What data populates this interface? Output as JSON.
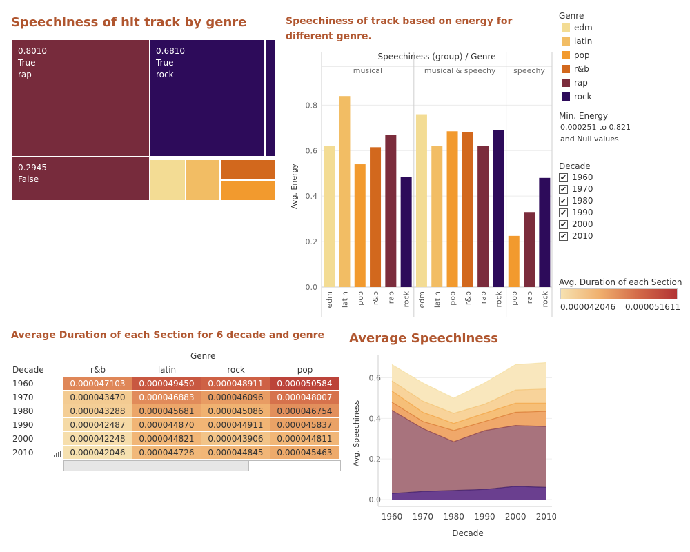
{
  "titles": {
    "treemap": "Speechiness of hit track by genre",
    "bar": "Speechiness of track based on energy for different genre.",
    "heat": "Average Duration of each Section for 6 decade and genre",
    "area": "Average Speechiness"
  },
  "colors": {
    "edm": "#f3dc94",
    "latin": "#f2bd64",
    "pop": "#f29a2e",
    "r&b": "#d2681d",
    "rap": "#7b2c3c",
    "rock": "#2d0b5a"
  },
  "legend": {
    "genre_title": "Genre",
    "genres": [
      "edm",
      "latin",
      "pop",
      "r&b",
      "rap",
      "rock"
    ],
    "energy_title": "Min. Energy",
    "energy_range": "0.000251 to 0.821",
    "energy_null": "and Null values",
    "decade_title": "Decade",
    "decades": [
      "1960",
      "1970",
      "1980",
      "1990",
      "2000",
      "2010"
    ],
    "duration_title": "Avg. Duration of each Section",
    "duration_min": "0.000042046",
    "duration_max": "0.000051611",
    "check_mark": "✔"
  },
  "treemap": {
    "tiles": [
      {
        "value": "0.8010",
        "flag": "True",
        "genre": "rap",
        "color": "#772b3c"
      },
      {
        "value": "0.6810",
        "flag": "True",
        "genre": "rock",
        "color": "#2d0b5a"
      },
      {
        "value": "0.2945",
        "flag": "False",
        "genre": "",
        "color": "#772b3c"
      }
    ]
  },
  "chart_data": [
    {
      "type": "bar",
      "title": "Speechiness of track based on energy for different genre.",
      "header": "Speechiness (group)  /  Genre",
      "ylabel": "Avg. Energy",
      "ylim": [
        0,
        0.88
      ],
      "yticks": [
        "0.0",
        "0.2",
        "0.4",
        "0.6",
        "0.8"
      ],
      "groups": [
        {
          "name": "musical",
          "categories": [
            "edm",
            "latin",
            "pop",
            "r&b",
            "rap",
            "rock"
          ],
          "values": [
            0.62,
            0.84,
            0.54,
            0.615,
            0.67,
            0.485
          ]
        },
        {
          "name": "musical & speechy",
          "categories": [
            "edm",
            "latin",
            "pop",
            "r&b",
            "rap",
            "rock"
          ],
          "values": [
            0.76,
            0.62,
            0.685,
            0.68,
            0.62,
            0.69
          ]
        },
        {
          "name": "speechy",
          "categories": [
            "pop",
            "rap",
            "rock"
          ],
          "values": [
            0.225,
            0.33,
            0.48
          ]
        }
      ]
    },
    {
      "type": "table",
      "title": "Average Duration of each Section for 6 decade and genre",
      "column_group": "Genre",
      "row_header": "Decade",
      "columns": [
        "r&b",
        "latin",
        "rock",
        "pop"
      ],
      "rows": [
        {
          "decade": "1960",
          "cells": [
            "0.000047103",
            "0.000049450",
            "0.000048911",
            "0.000050584"
          ],
          "shade": [
            0.53,
            0.78,
            0.72,
            0.9
          ]
        },
        {
          "decade": "1970",
          "cells": [
            "0.000043470",
            "0.000046883",
            "0.000046096",
            "0.000048007"
          ],
          "shade": [
            0.15,
            0.51,
            0.43,
            0.63
          ]
        },
        {
          "decade": "1980",
          "cells": [
            "0.000043288",
            "0.000045681",
            "0.000045086",
            "0.000046754"
          ],
          "shade": [
            0.13,
            0.38,
            0.32,
            0.49
          ]
        },
        {
          "decade": "1990",
          "cells": [
            "0.000042487",
            "0.000044870",
            "0.000044911",
            "0.000045837"
          ],
          "shade": [
            0.05,
            0.3,
            0.3,
            0.4
          ]
        },
        {
          "decade": "2000",
          "cells": [
            "0.000042248",
            "0.000044821",
            "0.000043906",
            "0.000044811"
          ],
          "shade": [
            0.02,
            0.29,
            0.2,
            0.29
          ]
        },
        {
          "decade": "2010",
          "cells": [
            "0.000042046",
            "0.000044726",
            "0.000044845",
            "0.000045463"
          ],
          "shade": [
            0.0,
            0.28,
            0.29,
            0.36
          ]
        }
      ]
    },
    {
      "type": "area",
      "title": "Average Speechiness",
      "xlabel": "Decade",
      "ylabel": "Avg. Speechiness",
      "x": [
        "1960",
        "1970",
        "1980",
        "1990",
        "2000",
        "2010"
      ],
      "ylim": [
        0,
        0.68
      ],
      "yticks": [
        "0.0",
        "0.2",
        "0.4",
        "0.6"
      ],
      "stacked_tops": [
        {
          "name": "rock",
          "values": [
            0.03,
            0.04,
            0.045,
            0.05,
            0.065,
            0.06
          ],
          "color": "#6a3f8f"
        },
        {
          "name": "rap",
          "values": [
            0.44,
            0.35,
            0.285,
            0.34,
            0.365,
            0.36
          ],
          "color": "#a8737d"
        },
        {
          "name": "r&b",
          "values": [
            0.48,
            0.385,
            0.34,
            0.385,
            0.43,
            0.435
          ],
          "color": "#f0a86a"
        },
        {
          "name": "pop",
          "values": [
            0.535,
            0.43,
            0.375,
            0.425,
            0.475,
            0.475
          ],
          "color": "#f6bf78"
        },
        {
          "name": "latin",
          "values": [
            0.585,
            0.485,
            0.425,
            0.47,
            0.54,
            0.545
          ],
          "color": "#f8d39a"
        },
        {
          "name": "edm",
          "values": [
            0.665,
            0.575,
            0.5,
            0.575,
            0.665,
            0.675
          ],
          "color": "#f9e7bd"
        }
      ]
    }
  ]
}
